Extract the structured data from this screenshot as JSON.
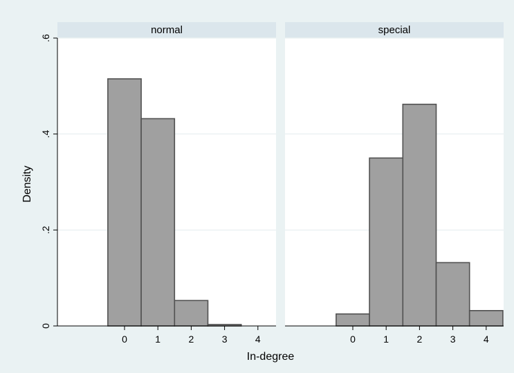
{
  "chart_data": {
    "type": "bar",
    "title": "",
    "xlabel": "In-degree",
    "ylabel": "Density",
    "ylim": [
      0,
      0.6
    ],
    "y_ticks": [
      {
        "value": 0,
        "label": "0"
      },
      {
        "value": 0.2,
        "label": ".2"
      },
      {
        "value": 0.4,
        "label": ".4"
      },
      {
        "value": 0.6,
        "label": ".6"
      }
    ],
    "x_ticks": [
      "0",
      "1",
      "2",
      "3",
      "4"
    ],
    "grid": true,
    "colors": {
      "bar": "#a0a0a0",
      "bar_edge": "#505050",
      "panel_header": "#dbe6ec",
      "background": "#eaf2f3",
      "grid": "#e3ecee"
    },
    "panels": [
      {
        "name": "normal",
        "categories": [
          0,
          1,
          2,
          3,
          4
        ],
        "values": [
          0.515,
          0.432,
          0.053,
          0.003,
          0
        ]
      },
      {
        "name": "special",
        "categories": [
          0,
          1,
          2,
          3,
          4
        ],
        "values": [
          0.025,
          0.35,
          0.462,
          0.132,
          0.032
        ]
      }
    ]
  }
}
